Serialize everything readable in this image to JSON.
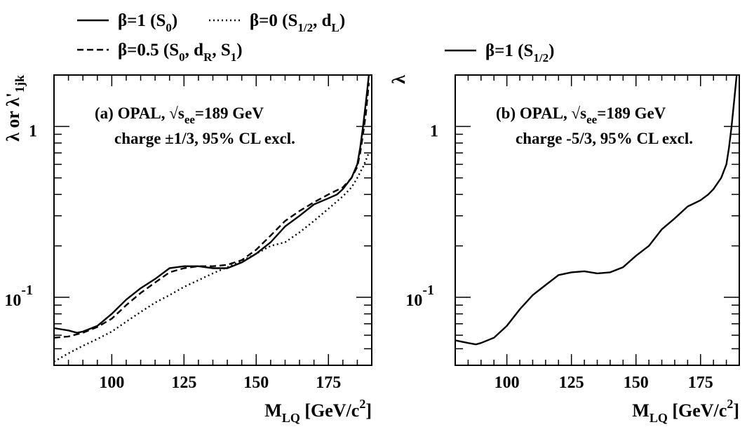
{
  "chart_data": [
    {
      "type": "line",
      "panel_label": "(a) OPAL, √s",
      "energy_subscript": "ee",
      "energy_value": "=189 GeV",
      "subtitle": "charge ±1/3, 95% CL excl.",
      "xlabel_main": "M",
      "xlabel_sub": "LQ",
      "xlabel_unit": " [GeV/c",
      "xlabel_sup": "2",
      "xlabel_end": "]",
      "ylabel": "λ or λ'",
      "ylabel_sub": "1jk",
      "xlim": [
        80,
        190
      ],
      "ylim": [
        0.04,
        2.0
      ],
      "yscale": "log",
      "x_ticks": [
        "100",
        "125",
        "150",
        "175"
      ],
      "y_tick_one": "1",
      "y_tick_base": "10",
      "y_tick_exp": "-1",
      "legend_placement": "above-plot",
      "series": [
        {
          "legend": {
            "pre": "β=1 (S",
            "sub": "0",
            "post": ")"
          },
          "style": "solid",
          "x": [
            80,
            85,
            88,
            90,
            95,
            100,
            105,
            110,
            115,
            120,
            125,
            130,
            135,
            140,
            145,
            150,
            155,
            160,
            165,
            170,
            175,
            178,
            180,
            183,
            185,
            186,
            187,
            188,
            189
          ],
          "y": [
            0.066,
            0.064,
            0.062,
            0.063,
            0.068,
            0.08,
            0.097,
            0.113,
            0.128,
            0.148,
            0.152,
            0.152,
            0.148,
            0.148,
            0.16,
            0.18,
            0.21,
            0.26,
            0.3,
            0.35,
            0.38,
            0.4,
            0.43,
            0.5,
            0.6,
            0.75,
            1.0,
            1.4,
            2.0
          ]
        },
        {
          "legend": {
            "pre": "β=0.5 (S",
            "sub": "0",
            "mid1": ", d",
            "sub2": "R",
            "mid2": ", S",
            "sub3": "1",
            "post": ")"
          },
          "style": "dashed",
          "x": [
            80,
            85,
            90,
            95,
            100,
            105,
            110,
            115,
            120,
            125,
            130,
            135,
            140,
            145,
            150,
            155,
            160,
            165,
            170,
            175,
            180,
            183,
            185,
            186,
            187,
            188,
            189
          ],
          "y": [
            0.058,
            0.059,
            0.062,
            0.067,
            0.075,
            0.09,
            0.106,
            0.122,
            0.14,
            0.148,
            0.152,
            0.152,
            0.155,
            0.165,
            0.19,
            0.23,
            0.28,
            0.32,
            0.36,
            0.4,
            0.44,
            0.5,
            0.58,
            0.7,
            0.9,
            1.2,
            1.8
          ]
        },
        {
          "legend": {
            "pre": "β=0 (S",
            "sub": "1/2",
            "mid1": ", d",
            "sub2": "L",
            "post": ")"
          },
          "style": "dotted",
          "x": [
            80,
            85,
            90,
            95,
            100,
            105,
            110,
            115,
            120,
            125,
            130,
            135,
            140,
            145,
            150,
            155,
            160,
            165,
            170,
            175,
            180,
            183,
            185,
            187,
            189
          ],
          "y": [
            0.042,
            0.047,
            0.052,
            0.057,
            0.063,
            0.072,
            0.082,
            0.093,
            0.103,
            0.115,
            0.126,
            0.138,
            0.15,
            0.163,
            0.18,
            0.2,
            0.21,
            0.24,
            0.28,
            0.33,
            0.39,
            0.44,
            0.5,
            0.58,
            0.7
          ]
        }
      ]
    },
    {
      "type": "line",
      "panel_label": "(b) OPAL, √s",
      "energy_subscript": "ee",
      "energy_value": "=189 GeV",
      "subtitle": "charge -5/3, 95% CL excl.",
      "xlabel_main": "M",
      "xlabel_sub": "LQ",
      "xlabel_unit": " [GeV/c",
      "xlabel_sup": "2",
      "xlabel_end": "]",
      "ylabel": "λ",
      "xlim": [
        80,
        190
      ],
      "ylim": [
        0.04,
        2.0
      ],
      "yscale": "log",
      "x_ticks": [
        "100",
        "125",
        "150",
        "175"
      ],
      "y_tick_one": "1",
      "y_tick_base": "10",
      "y_tick_exp": "-1",
      "legend_placement": "above-plot",
      "series": [
        {
          "legend": {
            "pre": "β=1 (S",
            "sub": "1/2",
            "post": ")"
          },
          "style": "solid",
          "x": [
            80,
            85,
            88,
            90,
            95,
            100,
            105,
            110,
            115,
            120,
            125,
            130,
            135,
            140,
            145,
            150,
            155,
            160,
            165,
            170,
            175,
            178,
            180,
            183,
            185,
            186,
            187,
            188,
            189
          ],
          "y": [
            0.056,
            0.054,
            0.053,
            0.054,
            0.058,
            0.068,
            0.085,
            0.103,
            0.118,
            0.135,
            0.14,
            0.142,
            0.138,
            0.14,
            0.15,
            0.175,
            0.2,
            0.25,
            0.29,
            0.34,
            0.37,
            0.4,
            0.43,
            0.5,
            0.6,
            0.75,
            1.0,
            1.4,
            2.0
          ]
        }
      ]
    }
  ]
}
